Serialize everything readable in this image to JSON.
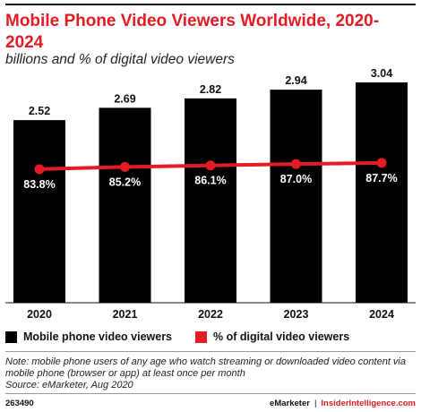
{
  "header": {
    "title": "Mobile Phone Video Viewers Worldwide, 2020-2024",
    "subtitle": "billions and % of digital video viewers"
  },
  "chart_data": {
    "type": "bar",
    "categories": [
      "2020",
      "2021",
      "2022",
      "2023",
      "2024"
    ],
    "series": [
      {
        "name": "Mobile phone video viewers",
        "type": "bar",
        "values": [
          2.52,
          2.69,
          2.82,
          2.94,
          3.04
        ],
        "labels": [
          "2.52",
          "2.69",
          "2.82",
          "2.94",
          "3.04"
        ],
        "color": "#000000"
      },
      {
        "name": "% of digital video viewers",
        "type": "line",
        "values": [
          83.8,
          85.2,
          86.1,
          87.0,
          87.7
        ],
        "labels": [
          "83.8%",
          "85.2%",
          "86.1%",
          "87.0%",
          "87.7%"
        ],
        "color": "#e31b23"
      }
    ],
    "ylim": [
      0,
      3.3
    ],
    "y2lim": [
      0,
      150
    ],
    "grid": false,
    "legend": "bottom-left"
  },
  "legend": {
    "items": [
      {
        "label": "Mobile phone video viewers",
        "color": "#000000"
      },
      {
        "label": "% of digital video viewers",
        "color": "#e31b23"
      }
    ]
  },
  "note": {
    "line1": "Note: mobile phone users of any age who watch streaming or downloaded video content via mobile phone (browser or app) at least once per month",
    "line2": "Source: eMarketer, Aug 2020"
  },
  "footer": {
    "chart_id": "263490",
    "brand_primary": "eMarketer",
    "separator": "|",
    "brand_secondary": "InsiderIntelligence.com"
  }
}
